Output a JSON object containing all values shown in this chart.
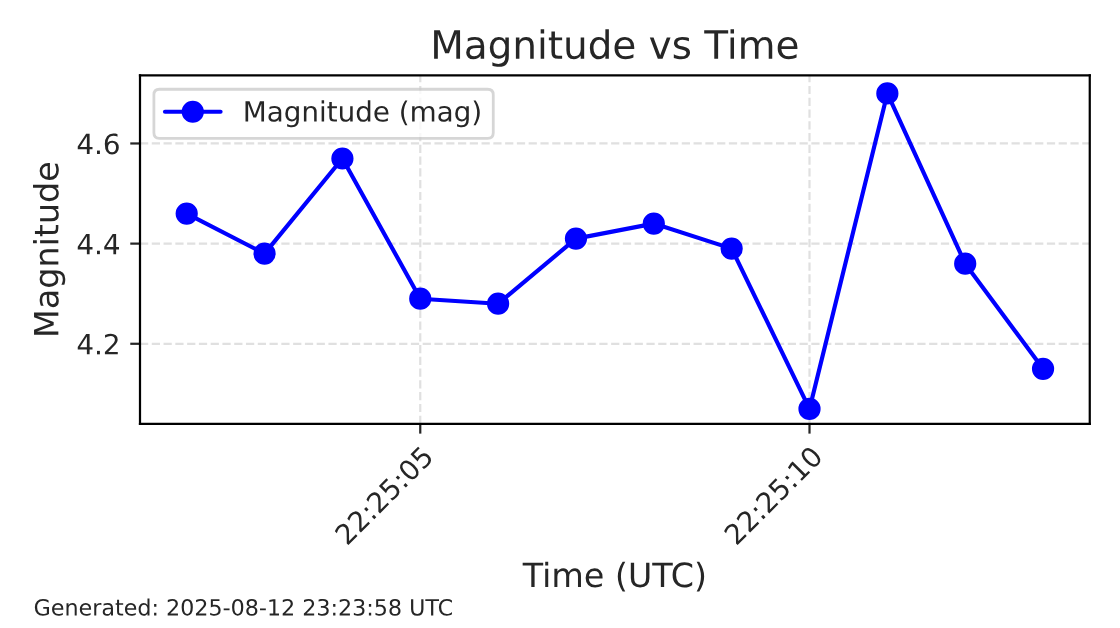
{
  "chart_data": {
    "type": "line",
    "title": "Magnitude vs Time",
    "xlabel": "Time (UTC)",
    "ylabel": "Magnitude",
    "x": [
      "2025-08-12T22:25:02",
      "2025-08-12T22:25:03",
      "2025-08-12T22:25:04",
      "2025-08-12T22:25:05",
      "2025-08-12T22:25:06",
      "2025-08-12T22:25:07",
      "2025-08-12T22:25:08",
      "2025-08-12T22:25:09",
      "2025-08-12T22:25:10",
      "2025-08-12T22:25:11",
      "2025-08-12T22:25:12",
      "2025-08-12T22:25:13"
    ],
    "series": [
      {
        "name": "Magnitude (mag)",
        "color": "#0000ff",
        "values": [
          4.46,
          4.38,
          4.57,
          4.29,
          4.28,
          4.41,
          4.44,
          4.39,
          4.07,
          4.7,
          4.36,
          4.15
        ]
      }
    ],
    "xlim": [
      "2025-08-12T22:25:01.4",
      "2025-08-12T22:25:13.6"
    ],
    "xticks": [
      {
        "value": "2025-08-12T22:25:05",
        "label": "22:25:05"
      },
      {
        "value": "2025-08-12T22:25:10",
        "label": "22:25:10"
      }
    ],
    "ylim": [
      4.04,
      4.736
    ],
    "yticks": [
      4.2,
      4.4,
      4.6
    ],
    "grid": true,
    "legend": "top left",
    "marker": "circle",
    "line_style": "solid",
    "annotations": [
      "Generated: 2025-08-12 23:23:58 UTC"
    ]
  }
}
